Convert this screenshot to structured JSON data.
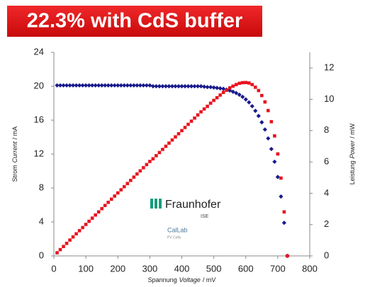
{
  "chart_data": {
    "type": "line",
    "title": "22.3% with CdS buffer",
    "xlabel": [
      "Spannung",
      "Voltage",
      "/ mV"
    ],
    "ylabel": [
      "Strom",
      "Current",
      "/ mA"
    ],
    "y2label": [
      "Leistung",
      "Power",
      "/ mW"
    ],
    "logo": {
      "name": "Fraunhofer",
      "sub": "ISE",
      "lab": "CalLab",
      "lab_sub": "PV Cells"
    },
    "xlim": [
      0,
      800
    ],
    "xticks": [
      0,
      100,
      200,
      300,
      400,
      500,
      600,
      700,
      800
    ],
    "ylim": [
      0,
      24
    ],
    "yticks": [
      0,
      4,
      8,
      12,
      16,
      20,
      24
    ],
    "y2lim": [
      0,
      13
    ],
    "y2ticks": [
      0,
      2,
      4,
      6,
      8,
      10,
      12
    ],
    "x": [
      10,
      20,
      30,
      40,
      50,
      60,
      70,
      80,
      90,
      100,
      110,
      120,
      130,
      140,
      150,
      160,
      170,
      180,
      190,
      200,
      210,
      220,
      230,
      240,
      250,
      260,
      270,
      280,
      290,
      300,
      310,
      320,
      330,
      340,
      350,
      360,
      370,
      380,
      390,
      400,
      410,
      420,
      430,
      440,
      450,
      460,
      470,
      480,
      490,
      500,
      510,
      520,
      530,
      540,
      550,
      560,
      570,
      580,
      590,
      600,
      610,
      620,
      630,
      640,
      650,
      660,
      670,
      680,
      690,
      700,
      710,
      720,
      730
    ],
    "series": [
      {
        "name": "Current",
        "color": "#1a1a8c",
        "marker": "diamond",
        "values": [
          20.1,
          20.1,
          20.1,
          20.1,
          20.1,
          20.1,
          20.1,
          20.1,
          20.1,
          20.1,
          20.1,
          20.1,
          20.1,
          20.1,
          20.1,
          20.1,
          20.1,
          20.1,
          20.1,
          20.1,
          20.1,
          20.1,
          20.1,
          20.1,
          20.1,
          20.1,
          20.1,
          20.1,
          20.1,
          20.1,
          20.0,
          20.0,
          20.0,
          20.0,
          20.0,
          20.0,
          20.0,
          20.0,
          20.0,
          20.0,
          20.0,
          20.0,
          20.0,
          20.0,
          20.0,
          20.0,
          19.95,
          19.9,
          19.9,
          19.85,
          19.8,
          19.75,
          19.7,
          19.6,
          19.5,
          19.35,
          19.2,
          19.0,
          18.75,
          18.45,
          18.1,
          17.65,
          17.1,
          16.5,
          15.75,
          14.9,
          13.85,
          12.6,
          11.1,
          9.3,
          7.0,
          3.9,
          0
        ]
      },
      {
        "name": "Power",
        "color": "#e8141e",
        "marker": "square",
        "axis": "y2",
        "values": [
          0.2,
          0.4,
          0.6,
          0.8,
          1.01,
          1.21,
          1.41,
          1.61,
          1.81,
          2.01,
          2.21,
          2.41,
          2.61,
          2.81,
          3.02,
          3.22,
          3.42,
          3.62,
          3.82,
          4.02,
          4.22,
          4.42,
          4.62,
          4.82,
          5.03,
          5.23,
          5.43,
          5.63,
          5.83,
          6.03,
          6.2,
          6.4,
          6.6,
          6.8,
          7.0,
          7.2,
          7.4,
          7.6,
          7.8,
          8.0,
          8.2,
          8.4,
          8.6,
          8.8,
          9.0,
          9.2,
          9.38,
          9.55,
          9.75,
          9.93,
          10.1,
          10.27,
          10.44,
          10.58,
          10.73,
          10.84,
          10.94,
          11.02,
          11.06,
          11.07,
          11.04,
          10.94,
          10.77,
          10.56,
          10.24,
          9.83,
          9.28,
          8.57,
          7.66,
          6.51,
          4.97,
          2.81,
          0
        ]
      }
    ]
  }
}
